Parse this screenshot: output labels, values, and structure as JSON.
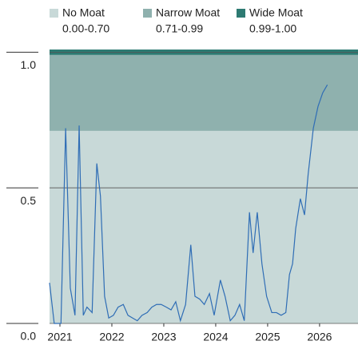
{
  "chart_data": {
    "type": "line",
    "bands": [
      {
        "name": "No Moat",
        "range": "0.00-0.70",
        "from": 0,
        "to": 0.7,
        "color": "#c8d9d8"
      },
      {
        "name": "Narrow Moat",
        "range": "0.71-0.99",
        "from": 0.71,
        "to": 0.99,
        "color": "#8fb1ae"
      },
      {
        "name": "Wide Moat",
        "range": "0.99-1.00",
        "from": 0.99,
        "to": 1.0,
        "color": "#2d7a72"
      }
    ],
    "x": [
      2020.8,
      2020.89,
      2021.02,
      2021.11,
      2021.2,
      2021.29,
      2021.37,
      2021.45,
      2021.52,
      2021.62,
      2021.71,
      2021.78,
      2021.86,
      2021.94,
      2022.03,
      2022.12,
      2022.22,
      2022.31,
      2022.4,
      2022.49,
      2022.58,
      2022.68,
      2022.77,
      2022.86,
      2022.95,
      2023.05,
      2023.14,
      2023.23,
      2023.32,
      2023.42,
      2023.52,
      2023.6,
      2023.69,
      2023.78,
      2023.88,
      2023.97,
      2024.09,
      2024.18,
      2024.28,
      2024.37,
      2024.46,
      2024.55,
      2024.65,
      2024.72,
      2024.8,
      2024.89,
      2024.98,
      2025.08,
      2025.17,
      2025.26,
      2025.35,
      2025.42,
      2025.48,
      2025.54,
      2025.63,
      2025.71,
      2025.78,
      2025.88,
      2025.97,
      2026.06,
      2026.15
    ],
    "series": [
      {
        "color": "#2f6db5",
        "values": [
          0.15,
          0.0,
          0.0,
          0.72,
          0.13,
          0.03,
          0.73,
          0.03,
          0.06,
          0.04,
          0.59,
          0.47,
          0.1,
          0.02,
          0.03,
          0.06,
          0.07,
          0.03,
          0.02,
          0.01,
          0.03,
          0.04,
          0.06,
          0.07,
          0.07,
          0.06,
          0.05,
          0.08,
          0.01,
          0.07,
          0.29,
          0.1,
          0.09,
          0.07,
          0.11,
          0.03,
          0.16,
          0.1,
          0.01,
          0.03,
          0.07,
          0.01,
          0.41,
          0.26,
          0.41,
          0.22,
          0.1,
          0.04,
          0.04,
          0.03,
          0.04,
          0.18,
          0.22,
          0.35,
          0.46,
          0.4,
          0.55,
          0.72,
          0.8,
          0.85,
          0.88
        ]
      }
    ],
    "xlim": [
      2020.8,
      2026.74
    ],
    "xticks": [
      2021,
      2022,
      2023,
      2024,
      2025,
      2026
    ],
    "ylim": [
      0,
      1.01
    ],
    "yticks": [
      {
        "value": 1,
        "label": "1.0"
      },
      {
        "value": 0.5,
        "label": "0.5"
      },
      {
        "value": 0,
        "label": "0.0"
      }
    ],
    "grid": true
  }
}
